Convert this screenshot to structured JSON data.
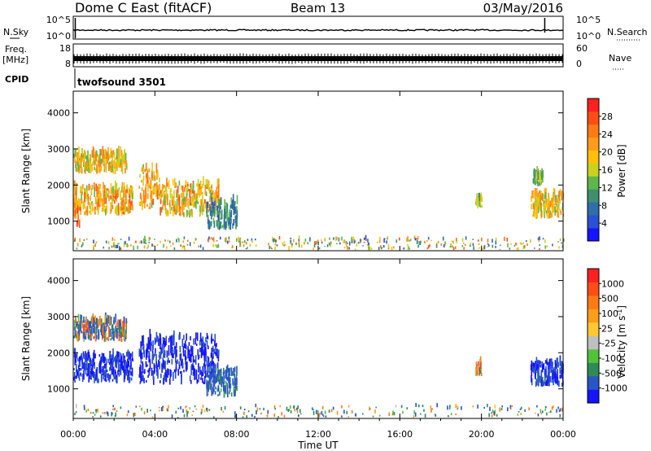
{
  "header": {
    "station": "Dome C East (fitACF)",
    "beam": "Beam 13",
    "date": "03/May/2016"
  },
  "strips": {
    "nsky_label": "N.Sky",
    "nsky_ticks": [
      "10^5",
      "10^0"
    ],
    "nsearch_label": "N.Search",
    "nsearch_ticks": [
      "10^5",
      "10^0"
    ],
    "freq_label": "Freq.",
    "freq_unit": "[MHz]",
    "freq_ticks": [
      "18",
      "8"
    ],
    "nave_label": "Nave",
    "nave_ticks": [
      "60",
      "0"
    ],
    "cpid_label": "CPID",
    "cpid_value": "twofsound 3501"
  },
  "chart_data": [
    {
      "type": "heatmap",
      "panel": "power",
      "ylabel": "Slant Range [km]",
      "ylim": [
        180,
        4600
      ],
      "yticks": [
        1000,
        2000,
        3000,
        4000
      ],
      "xlabel": "Time UT",
      "xlim": [
        0,
        24
      ],
      "xticks": [
        "00:00",
        "04:00",
        "08:00",
        "12:00",
        "16:00",
        "20:00",
        "00:00"
      ],
      "colorbar": {
        "label": "Power [dB]",
        "ticks": [
          "4",
          "8",
          "12",
          "16",
          "20",
          "24",
          "28"
        ],
        "colors": [
          "#1414ff",
          "#2b4fd6",
          "#2f6ea8",
          "#3f8f6f",
          "#5cb84a",
          "#c9d21f",
          "#ffc107",
          "#ff9c1a",
          "#ff7a14",
          "#ff4d14",
          "#ff2020"
        ]
      },
      "regions": [
        {
          "t": [
            0.0,
            2.9
          ],
          "r": [
            1150,
            1900
          ],
          "values": [
            14,
            28
          ]
        },
        {
          "t": [
            0.0,
            0.3
          ],
          "r": [
            800,
            1400
          ],
          "values": [
            18,
            30
          ]
        },
        {
          "t": [
            0.0,
            2.6
          ],
          "r": [
            2300,
            2850
          ],
          "values": [
            12,
            26
          ]
        },
        {
          "t": [
            3.2,
            4.2
          ],
          "r": [
            1300,
            2400
          ],
          "values": [
            14,
            28
          ]
        },
        {
          "t": [
            4.2,
            7.1
          ],
          "r": [
            1100,
            2000
          ],
          "values": [
            12,
            28
          ]
        },
        {
          "t": [
            6.5,
            8.0
          ],
          "r": [
            750,
            1500
          ],
          "values": [
            4,
            14
          ]
        },
        {
          "t": [
            19.7,
            20.0
          ],
          "r": [
            1350,
            1650
          ],
          "values": [
            10,
            20
          ]
        },
        {
          "t": [
            22.4,
            24.0
          ],
          "r": [
            1050,
            1700
          ],
          "values": [
            12,
            26
          ]
        },
        {
          "t": [
            22.5,
            23.0
          ],
          "r": [
            1950,
            2300
          ],
          "values": [
            8,
            18
          ]
        },
        {
          "t": [
            0.0,
            24.0
          ],
          "r": [
            190,
            500
          ],
          "values": [
            4,
            28
          ]
        }
      ]
    },
    {
      "type": "heatmap",
      "panel": "velocity",
      "ylabel": "Slant Range [km]",
      "ylim": [
        180,
        4600
      ],
      "yticks": [
        1000,
        2000,
        3000,
        4000
      ],
      "xlabel": "Time UT",
      "xlim": [
        0,
        24
      ],
      "xticks": [
        "00:00",
        "04:00",
        "08:00",
        "12:00",
        "16:00",
        "20:00",
        "00:00"
      ],
      "colorbar": {
        "label": "Velocity [m s-1]",
        "ticks": [
          "1000",
          "500",
          "100",
          "25",
          "-25",
          "-100",
          "-500",
          "-1000"
        ],
        "colors": [
          "#1414ff",
          "#2a55c9",
          "#2e8b57",
          "#52c23a",
          "#bfbfbf",
          "#ffc832",
          "#ff9c1a",
          "#ff7a14",
          "#ff4d14",
          "#ff2020"
        ]
      },
      "regions": [
        {
          "t": [
            0.0,
            2.9
          ],
          "r": [
            1150,
            1900
          ],
          "values": [
            -400,
            -80
          ]
        },
        {
          "t": [
            0.0,
            2.6
          ],
          "r": [
            2300,
            2850
          ],
          "values": [
            -150,
            80
          ]
        },
        {
          "t": [
            3.2,
            7.1
          ],
          "r": [
            1100,
            2400
          ],
          "values": [
            -500,
            -100
          ]
        },
        {
          "t": [
            6.5,
            8.0
          ],
          "r": [
            750,
            1500
          ],
          "values": [
            -200,
            0
          ]
        },
        {
          "t": [
            19.7,
            20.0
          ],
          "r": [
            1350,
            1650
          ],
          "values": [
            -100,
            100
          ]
        },
        {
          "t": [
            22.4,
            24.0
          ],
          "r": [
            1050,
            1700
          ],
          "values": [
            -400,
            -50
          ]
        },
        {
          "t": [
            0.0,
            24.0
          ],
          "r": [
            190,
            500
          ],
          "values": [
            -100,
            50
          ]
        }
      ]
    }
  ]
}
